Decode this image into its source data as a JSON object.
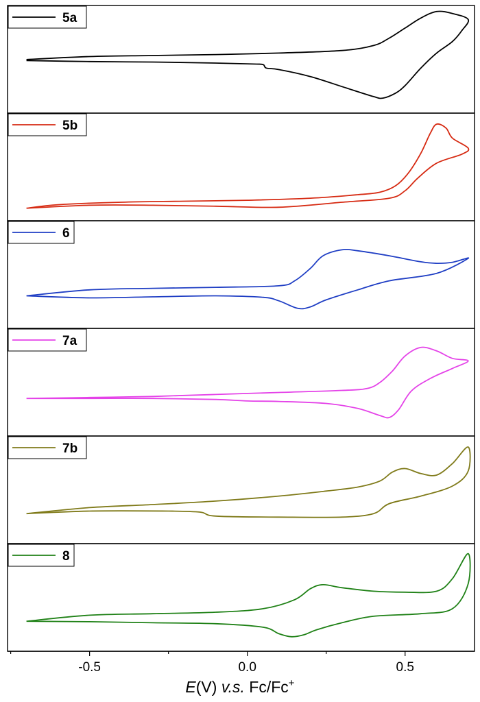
{
  "chart_data": {
    "type": "line",
    "layout": "stacked-panels",
    "xlabel_parts": {
      "var": "E",
      "unit": "(V) ",
      "vs": "v.s.",
      "ref": " Fc/Fc",
      "sup": "+"
    },
    "x_ticks": [
      -0.5,
      0.0,
      0.5
    ],
    "x_tick_labels": [
      "-0.5",
      "0.0",
      "0.5"
    ],
    "xlim": [
      -0.76,
      0.72
    ],
    "y_ticks_shown": false,
    "panels": [
      {
        "label": "5a",
        "color": "#000000",
        "ylim": [
          -1.15,
          1.0
        ],
        "curve": [
          [
            -0.7,
            -0.08
          ],
          [
            -0.5,
            -0.02
          ],
          [
            -0.3,
            0.0
          ],
          [
            -0.1,
            0.02
          ],
          [
            0.1,
            0.05
          ],
          [
            0.3,
            0.1
          ],
          [
            0.4,
            0.2
          ],
          [
            0.45,
            0.35
          ],
          [
            0.5,
            0.55
          ],
          [
            0.55,
            0.75
          ],
          [
            0.6,
            0.88
          ],
          [
            0.65,
            0.84
          ],
          [
            0.7,
            0.72
          ],
          [
            0.68,
            0.5
          ],
          [
            0.65,
            0.28
          ],
          [
            0.6,
            0.05
          ],
          [
            0.55,
            -0.25
          ],
          [
            0.5,
            -0.6
          ],
          [
            0.47,
            -0.75
          ],
          [
            0.43,
            -0.85
          ],
          [
            0.4,
            -0.82
          ],
          [
            0.3,
            -0.62
          ],
          [
            0.2,
            -0.42
          ],
          [
            0.1,
            -0.28
          ],
          [
            0.06,
            -0.25
          ],
          [
            0.05,
            -0.18
          ],
          [
            0.02,
            -0.17
          ],
          [
            -0.1,
            -0.15
          ],
          [
            -0.3,
            -0.13
          ],
          [
            -0.5,
            -0.12
          ],
          [
            -0.7,
            -0.1
          ]
        ]
      },
      {
        "label": "5b",
        "color": "#d62a12",
        "ylim": [
          -1.15,
          1.0
        ],
        "curve": [
          [
            -0.7,
            -0.9
          ],
          [
            -0.6,
            -0.83
          ],
          [
            -0.4,
            -0.78
          ],
          [
            -0.2,
            -0.76
          ],
          [
            0.0,
            -0.74
          ],
          [
            0.2,
            -0.7
          ],
          [
            0.35,
            -0.63
          ],
          [
            0.42,
            -0.58
          ],
          [
            0.47,
            -0.45
          ],
          [
            0.51,
            -0.2
          ],
          [
            0.55,
            0.2
          ],
          [
            0.58,
            0.6
          ],
          [
            0.6,
            0.78
          ],
          [
            0.63,
            0.7
          ],
          [
            0.65,
            0.5
          ],
          [
            0.7,
            0.3
          ],
          [
            0.68,
            0.18
          ],
          [
            0.6,
            0.0
          ],
          [
            0.54,
            -0.3
          ],
          [
            0.5,
            -0.55
          ],
          [
            0.45,
            -0.7
          ],
          [
            0.3,
            -0.78
          ],
          [
            0.1,
            -0.88
          ],
          [
            -0.1,
            -0.86
          ],
          [
            -0.3,
            -0.84
          ],
          [
            -0.5,
            -0.84
          ],
          [
            -0.7,
            -0.9
          ]
        ]
      },
      {
        "label": "6",
        "color": "#1f3ec4",
        "ylim": [
          -1.15,
          1.0
        ],
        "curve": [
          [
            -0.7,
            -0.5
          ],
          [
            -0.5,
            -0.38
          ],
          [
            -0.3,
            -0.35
          ],
          [
            -0.1,
            -0.33
          ],
          [
            0.1,
            -0.3
          ],
          [
            0.15,
            -0.2
          ],
          [
            0.2,
            0.05
          ],
          [
            0.24,
            0.3
          ],
          [
            0.3,
            0.42
          ],
          [
            0.35,
            0.4
          ],
          [
            0.45,
            0.3
          ],
          [
            0.55,
            0.18
          ],
          [
            0.6,
            0.15
          ],
          [
            0.65,
            0.17
          ],
          [
            0.7,
            0.25
          ],
          [
            0.6,
            -0.05
          ],
          [
            0.45,
            -0.2
          ],
          [
            0.35,
            -0.38
          ],
          [
            0.25,
            -0.58
          ],
          [
            0.2,
            -0.72
          ],
          [
            0.16,
            -0.75
          ],
          [
            0.1,
            -0.6
          ],
          [
            0.05,
            -0.53
          ],
          [
            -0.1,
            -0.5
          ],
          [
            -0.3,
            -0.52
          ],
          [
            -0.5,
            -0.54
          ],
          [
            -0.7,
            -0.5
          ]
        ]
      },
      {
        "label": "7a",
        "color": "#e442e8",
        "ylim": [
          -1.15,
          1.0
        ],
        "curve": [
          [
            -0.7,
            -0.4
          ],
          [
            -0.5,
            -0.38
          ],
          [
            -0.3,
            -0.36
          ],
          [
            -0.1,
            -0.32
          ],
          [
            0.1,
            -0.28
          ],
          [
            0.3,
            -0.24
          ],
          [
            0.38,
            -0.2
          ],
          [
            0.42,
            -0.08
          ],
          [
            0.46,
            0.15
          ],
          [
            0.5,
            0.45
          ],
          [
            0.55,
            0.62
          ],
          [
            0.6,
            0.55
          ],
          [
            0.65,
            0.4
          ],
          [
            0.7,
            0.35
          ],
          [
            0.65,
            0.2
          ],
          [
            0.58,
            0.0
          ],
          [
            0.52,
            -0.25
          ],
          [
            0.48,
            -0.62
          ],
          [
            0.45,
            -0.78
          ],
          [
            0.42,
            -0.74
          ],
          [
            0.35,
            -0.6
          ],
          [
            0.25,
            -0.5
          ],
          [
            0.1,
            -0.46
          ],
          [
            0.0,
            -0.45
          ],
          [
            -0.1,
            -0.42
          ],
          [
            -0.3,
            -0.4
          ],
          [
            -0.5,
            -0.4
          ],
          [
            -0.7,
            -0.4
          ]
        ]
      },
      {
        "label": "7b",
        "color": "#7f7a19",
        "ylim": [
          -1.15,
          1.0
        ],
        "curve": [
          [
            -0.7,
            -0.55
          ],
          [
            -0.5,
            -0.43
          ],
          [
            -0.3,
            -0.37
          ],
          [
            -0.1,
            -0.3
          ],
          [
            0.1,
            -0.2
          ],
          [
            0.25,
            -0.1
          ],
          [
            0.35,
            -0.02
          ],
          [
            0.42,
            0.1
          ],
          [
            0.46,
            0.28
          ],
          [
            0.5,
            0.35
          ],
          [
            0.55,
            0.25
          ],
          [
            0.6,
            0.22
          ],
          [
            0.65,
            0.45
          ],
          [
            0.7,
            0.78
          ],
          [
            0.7,
            0.3
          ],
          [
            0.65,
            0.0
          ],
          [
            0.55,
            -0.2
          ],
          [
            0.45,
            -0.35
          ],
          [
            0.4,
            -0.55
          ],
          [
            0.3,
            -0.62
          ],
          [
            0.1,
            -0.62
          ],
          [
            -0.1,
            -0.6
          ],
          [
            -0.15,
            -0.52
          ],
          [
            -0.25,
            -0.5
          ],
          [
            -0.5,
            -0.5
          ],
          [
            -0.7,
            -0.55
          ]
        ]
      },
      {
        "label": "8",
        "color": "#1f8116",
        "ylim": [
          -1.15,
          1.0
        ],
        "curve": [
          [
            -0.7,
            -0.55
          ],
          [
            -0.5,
            -0.43
          ],
          [
            -0.3,
            -0.4
          ],
          [
            -0.1,
            -0.37
          ],
          [
            0.05,
            -0.3
          ],
          [
            0.15,
            -0.12
          ],
          [
            0.2,
            0.1
          ],
          [
            0.24,
            0.18
          ],
          [
            0.3,
            0.12
          ],
          [
            0.4,
            0.05
          ],
          [
            0.5,
            0.03
          ],
          [
            0.6,
            0.05
          ],
          [
            0.65,
            0.3
          ],
          [
            0.7,
            0.8
          ],
          [
            0.7,
            0.2
          ],
          [
            0.65,
            -0.3
          ],
          [
            0.55,
            -0.4
          ],
          [
            0.4,
            -0.45
          ],
          [
            0.3,
            -0.58
          ],
          [
            0.22,
            -0.72
          ],
          [
            0.18,
            -0.82
          ],
          [
            0.14,
            -0.86
          ],
          [
            0.1,
            -0.8
          ],
          [
            0.05,
            -0.67
          ],
          [
            -0.1,
            -0.6
          ],
          [
            -0.3,
            -0.58
          ],
          [
            -0.5,
            -0.56
          ],
          [
            -0.7,
            -0.55
          ]
        ]
      }
    ]
  }
}
